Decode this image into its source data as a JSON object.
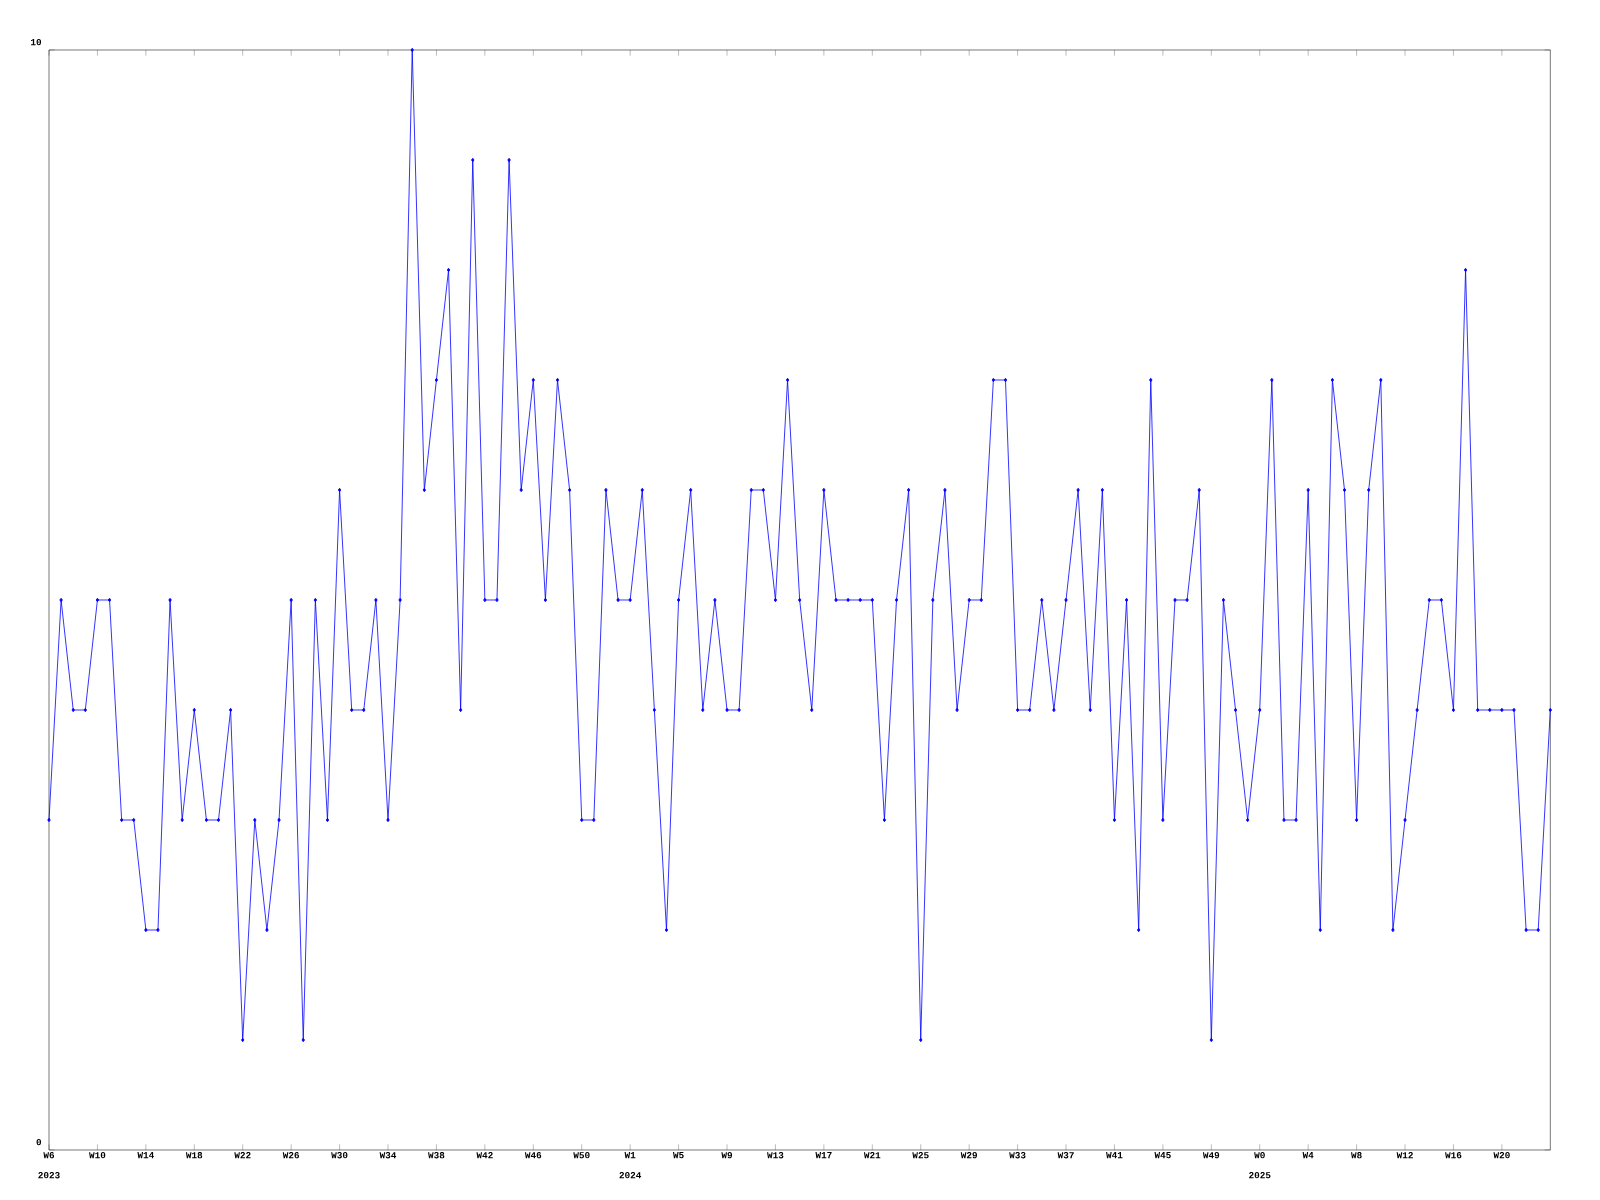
{
  "chart_data": {
    "type": "line",
    "color": "#0000ff",
    "marker": "diamond",
    "line_style": "solid",
    "grid": false,
    "categories": [
      "W6",
      null,
      null,
      null,
      "W10",
      null,
      null,
      null,
      "W14",
      null,
      null,
      null,
      "W18",
      null,
      null,
      null,
      "W22",
      null,
      null,
      null,
      "W26",
      null,
      null,
      null,
      "W30",
      null,
      null,
      null,
      "W34",
      null,
      null,
      null,
      "W38",
      null,
      null,
      null,
      "W42",
      null,
      null,
      null,
      "W46",
      null,
      null,
      null,
      "W50",
      null,
      null,
      null,
      "W1",
      null,
      null,
      null,
      "W5",
      null,
      null,
      null,
      "W9",
      null,
      null,
      null,
      "W13",
      null,
      null,
      null,
      "W17",
      null,
      null,
      null,
      "W21",
      null,
      null,
      null,
      "W25",
      null,
      null,
      null,
      "W29",
      null,
      null,
      null,
      "W33",
      null,
      null,
      null,
      "W37",
      null,
      null,
      null,
      "W41",
      null,
      null,
      null,
      "W45",
      null,
      null,
      null,
      "W49",
      null,
      null,
      null,
      "W0",
      null,
      null,
      null,
      "W4",
      null,
      null,
      null,
      "W8",
      null,
      null,
      null,
      "W12",
      null,
      null,
      null,
      "W16",
      null,
      null,
      null,
      "W20",
      null,
      null,
      null,
      null
    ],
    "values": [
      3,
      5,
      4,
      4,
      5,
      5,
      3,
      3,
      2,
      2,
      5,
      3,
      4,
      3,
      3,
      4,
      1,
      3,
      2,
      3,
      5,
      1,
      5,
      3,
      6,
      4,
      4,
      5,
      3,
      5,
      10,
      6,
      7,
      8,
      4,
      9,
      5,
      5,
      9,
      6,
      7,
      5,
      7,
      6,
      3,
      3,
      6,
      5,
      5,
      6,
      4,
      2,
      5,
      6,
      4,
      5,
      4,
      4,
      6,
      6,
      5,
      7,
      5,
      4,
      6,
      5,
      5,
      5,
      5,
      3,
      5,
      6,
      1,
      5,
      6,
      4,
      5,
      5,
      7,
      7,
      4,
      4,
      5,
      4,
      5,
      6,
      4,
      6,
      3,
      5,
      2,
      7,
      3,
      5,
      5,
      6,
      1,
      5,
      4,
      3,
      4,
      7,
      3,
      3,
      6,
      2,
      7,
      6,
      3,
      6,
      7,
      2,
      3,
      4,
      5,
      5,
      4,
      8,
      4,
      4,
      4,
      4,
      2,
      2,
      4
    ],
    "ylim": [
      0,
      10
    ],
    "yticks": [
      0,
      10
    ],
    "annotations": [
      "2023",
      "2024",
      "2025"
    ]
  }
}
